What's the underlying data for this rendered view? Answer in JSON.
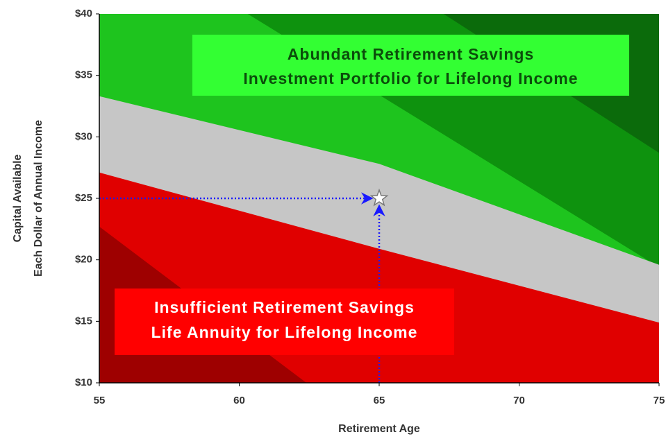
{
  "chart_data": {
    "type": "area",
    "x_label": "Retirement Age",
    "y_label": [
      "Capital Available",
      "Each Dollar of Annual Income"
    ],
    "xlim": [
      55,
      75
    ],
    "xticks": [
      55,
      60,
      65,
      70,
      75
    ],
    "ylim": [
      10,
      40
    ],
    "yticks": [
      {
        "value": 10,
        "label": "$10"
      },
      {
        "value": 15,
        "label": "$15"
      },
      {
        "value": 20,
        "label": "$20"
      },
      {
        "value": 25,
        "label": "$25"
      },
      {
        "value": 30,
        "label": "$30"
      },
      {
        "value": 35,
        "label": "$35"
      },
      {
        "value": 40,
        "label": "$40"
      }
    ],
    "series": [
      {
        "color": "#0b6b0b",
        "x": [
          55,
          75
        ],
        "values": [
          40,
          40
        ]
      },
      {
        "color": "#0e920e",
        "x": [
          67.3,
          75
        ],
        "values": [
          40,
          28.7
        ]
      },
      {
        "color": "#1ec41e",
        "x": [
          60.3,
          75
        ],
        "values": [
          40,
          19.4
        ]
      },
      {
        "color": "#c6c6c6",
        "x": [
          55,
          65,
          75
        ],
        "values": [
          33.3,
          27.8,
          19.6
        ]
      },
      {
        "color": "#e00000",
        "x": [
          55,
          65,
          75
        ],
        "values": [
          27.1,
          20.9,
          14.9
        ]
      },
      {
        "color": "#9e0000",
        "x": [
          55,
          62.4
        ],
        "values": [
          22.7,
          10
        ]
      }
    ],
    "point": {
      "x": 65,
      "y": 25,
      "color": "#1a1aff"
    },
    "annotations": [
      {
        "lines": [
          "Abundant Retirement Savings",
          "Investment Portfolio for Lifelong Income"
        ],
        "color": "#33ff33"
      },
      {
        "lines": [
          "Insufficient Retirement Savings",
          "Life Annuity for Lifelong Income"
        ],
        "color": "#ff0000"
      }
    ]
  }
}
